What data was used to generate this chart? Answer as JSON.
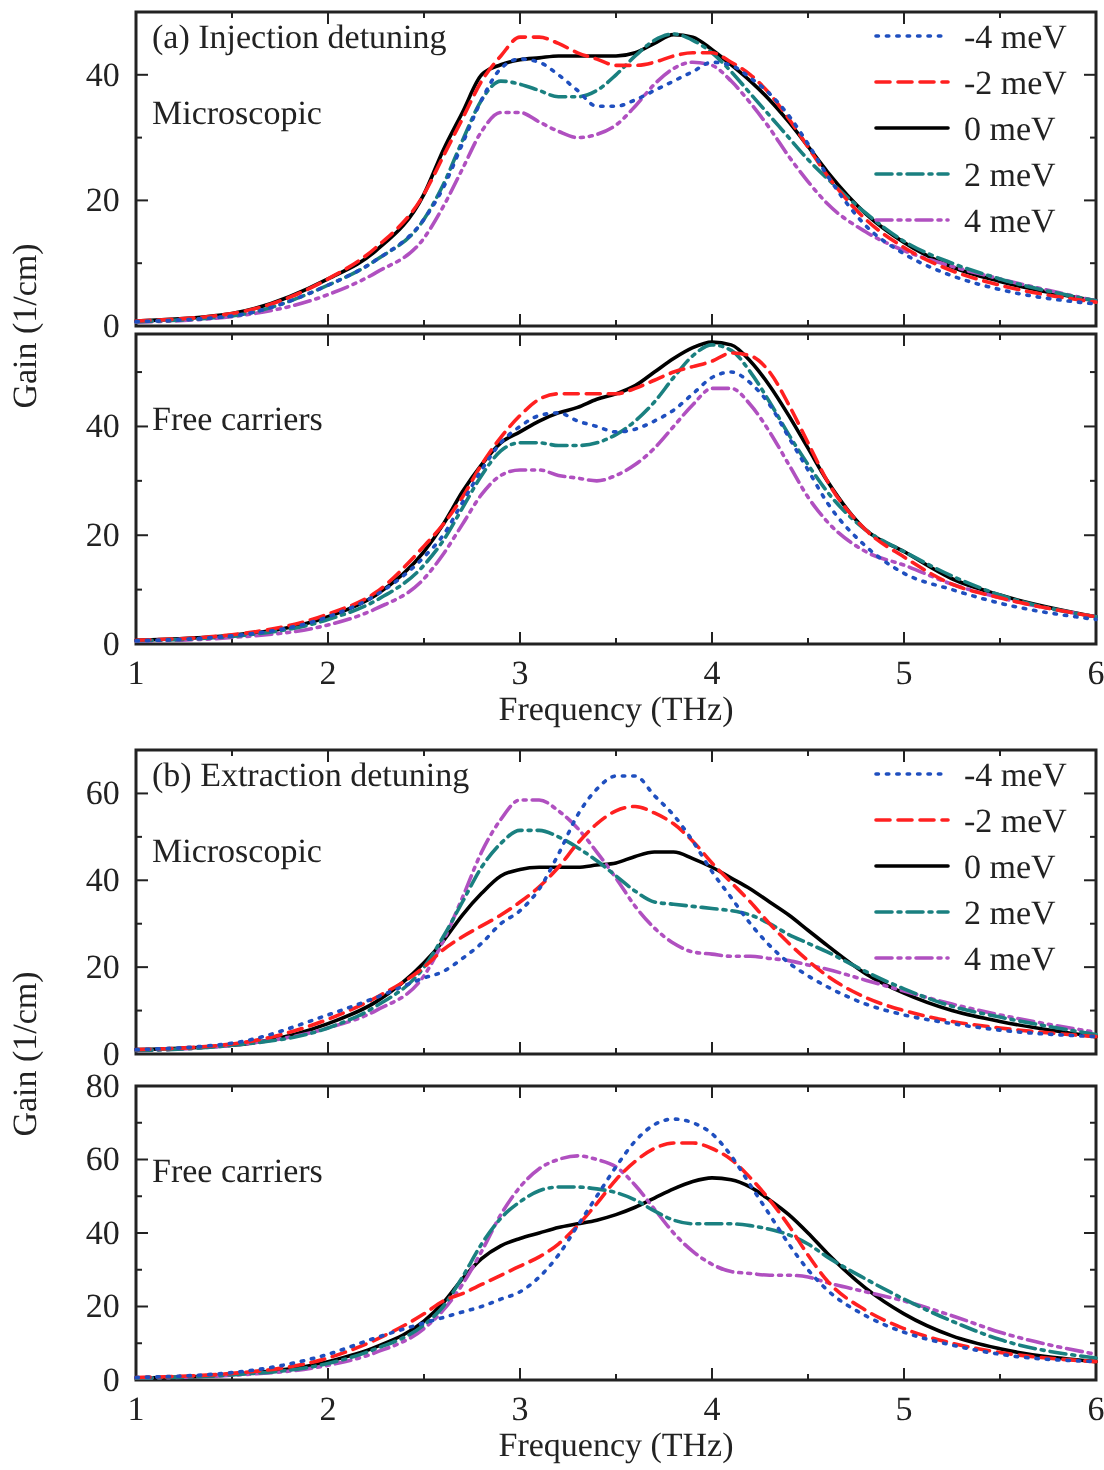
{
  "chart_data": [
    {
      "type": "line",
      "annotations": [
        "(a)  Injection detuning",
        "Microscopic"
      ],
      "ylabel": "Gain (1/cm)",
      "xlim": [
        1,
        6
      ],
      "ylim": [
        0,
        50
      ],
      "tick_labels": "y",
      "legend": "top right",
      "xticks": [
        1,
        {
          "value": 1.5,
          "label": null
        },
        2,
        {
          "value": 2.5,
          "label": null
        },
        3,
        {
          "value": 3.5,
          "label": null
        },
        4,
        {
          "value": 4.5,
          "label": null
        },
        5,
        {
          "value": 5.5,
          "label": null
        },
        6
      ],
      "yticks": [
        0,
        {
          "value": 10,
          "label": null
        },
        20,
        {
          "value": 30,
          "label": null
        },
        40,
        {
          "value": 50,
          "label": null
        }
      ],
      "x": [
        1,
        1.5,
        2,
        2.25,
        2.5,
        2.6,
        2.7,
        2.8,
        2.9,
        3,
        3.1,
        3.2,
        3.3,
        3.4,
        3.5,
        3.6,
        3.7,
        3.8,
        3.9,
        4,
        4.1,
        4.2,
        4.3,
        4.4,
        4.5,
        4.6,
        4.8,
        5,
        5.25,
        5.5,
        6
      ],
      "series": [
        {
          "name": "-4 meV",
          "color": "#1f4fbf",
          "line_style": "dotted",
          "values": [
            0.7,
            1.6,
            6.5,
            10.5,
            17,
            22,
            29,
            36,
            41,
            42.5,
            42,
            40,
            37.5,
            35,
            35,
            36,
            37.5,
            39,
            40.5,
            42,
            41.5,
            39.5,
            37,
            33.5,
            29,
            24,
            16,
            11.5,
            8,
            5.8,
            3.5
          ]
        },
        {
          "name": "-2 meV",
          "color": "#ff2020",
          "line_style": "dashed",
          "values": [
            0.8,
            2,
            7.5,
            12.5,
            21,
            27,
            33,
            39,
            43,
            46,
            46,
            45,
            43.5,
            42.5,
            41.5,
            41.5,
            42,
            43,
            43.5,
            43.5,
            42,
            40,
            37,
            33,
            28.5,
            24,
            17,
            12.5,
            8.8,
            6.5,
            3.8
          ]
        },
        {
          "name": "0 meV",
          "color": "#000000",
          "line_style": "solid",
          "values": [
            0.8,
            2,
            7.5,
            12,
            21,
            28,
            34,
            40,
            41.6,
            42.4,
            42.7,
            43,
            43,
            43,
            43,
            43.5,
            45,
            46.4,
            46,
            44,
            41.6,
            39,
            36,
            32.5,
            28.6,
            24.6,
            17.9,
            13.3,
            9.4,
            7.1,
            4
          ]
        },
        {
          "name": "2 meV",
          "color": "#1a8080",
          "line_style": "dashdot",
          "values": [
            0.7,
            1.6,
            6.5,
            10.5,
            17,
            22.5,
            29.5,
            36,
            39,
            38.5,
            37.5,
            36.5,
            36.5,
            37.5,
            40,
            43,
            45.5,
            46.5,
            45.5,
            43.5,
            40.5,
            37,
            33.5,
            30,
            26.5,
            23.5,
            18,
            13.5,
            10,
            7.5,
            4
          ]
        },
        {
          "name": "4 meV",
          "color": "#b050c0",
          "line_style": "dashdotdot",
          "values": [
            0.6,
            1.5,
            5,
            8.5,
            14,
            19,
            25,
            31,
            34,
            34,
            32.5,
            31,
            30,
            30.5,
            32,
            35,
            38.5,
            41,
            42,
            41.5,
            39,
            35.5,
            31.5,
            27,
            23,
            19.5,
            15,
            12,
            9.5,
            7.5,
            4
          ]
        }
      ]
    },
    {
      "type": "line",
      "annotations": [
        "Free carriers"
      ],
      "xlabel": "Frequency (THz)",
      "xlim": [
        1,
        6
      ],
      "ylim": [
        0,
        57
      ],
      "xticks": [
        1,
        {
          "value": 1.5,
          "label": null
        },
        2,
        {
          "value": 2.5,
          "label": null
        },
        3,
        {
          "value": 3.5,
          "label": null
        },
        4,
        {
          "value": 4.5,
          "label": null
        },
        5,
        {
          "value": 5.5,
          "label": null
        },
        6
      ],
      "yticks": [
        0,
        {
          "value": 10,
          "label": null
        },
        20,
        {
          "value": 30,
          "label": null
        },
        40,
        {
          "value": 50,
          "label": null
        }
      ],
      "x": [
        1,
        1.5,
        2,
        2.25,
        2.5,
        2.6,
        2.7,
        2.8,
        2.9,
        3,
        3.1,
        3.2,
        3.3,
        3.4,
        3.5,
        3.6,
        3.7,
        3.8,
        3.9,
        4,
        4.1,
        4.2,
        4.3,
        4.4,
        4.5,
        4.6,
        4.8,
        5,
        5.25,
        5.5,
        6
      ],
      "series": [
        {
          "color": "#1f4fbf",
          "line_style": "dotted",
          "values": [
            0.6,
            1.5,
            5,
            9,
            16,
            20,
            26,
            32,
            37,
            40,
            42,
            42.5,
            41,
            40,
            39,
            39.5,
            41,
            43,
            46,
            49,
            50,
            48,
            44,
            38,
            32,
            26,
            18,
            13,
            10,
            7.5,
            4.5
          ]
        },
        {
          "color": "#ff2020",
          "line_style": "dashed",
          "values": [
            0.7,
            1.7,
            5.5,
            9.5,
            18,
            22,
            27,
            33,
            38,
            42,
            45,
            46,
            46,
            46,
            46,
            47,
            48.5,
            50,
            51,
            52,
            53.5,
            53,
            50,
            44,
            37,
            30,
            21,
            16,
            11,
            8.5,
            5
          ]
        },
        {
          "color": "#000000",
          "line_style": "solid",
          "values": [
            0.7,
            1.6,
            5,
            9,
            17,
            22,
            28,
            33,
            37,
            39,
            41,
            42.5,
            43.5,
            45,
            46,
            47.5,
            50,
            52.5,
            54.5,
            55.5,
            55,
            52,
            47.5,
            42,
            36,
            30,
            21,
            17,
            12,
            9,
            5
          ]
        },
        {
          "color": "#1a8080",
          "line_style": "dashdot",
          "values": [
            0.6,
            1.4,
            4.5,
            8,
            14.5,
            19,
            25,
            31,
            35.5,
            37,
            37,
            36.5,
            36.5,
            37,
            38.5,
            41,
            44.5,
            49,
            53,
            55,
            54,
            50,
            44.5,
            38.5,
            33,
            28,
            21,
            17,
            12.5,
            9,
            5
          ]
        },
        {
          "color": "#b050c0",
          "line_style": "dashdotdot",
          "values": [
            0.5,
            1.2,
            3.5,
            6.5,
            12,
            16.5,
            22,
            27.5,
            31,
            32,
            32,
            31,
            30.5,
            30,
            31,
            33,
            36,
            40,
            44,
            47,
            47,
            44,
            39,
            33,
            27,
            22.5,
            17,
            14.5,
            11,
            8.5,
            5
          ]
        }
      ]
    },
    {
      "type": "line",
      "annotations": [
        "(b)  Extraction detuning",
        "Microscopic"
      ],
      "ylabel": "Gain (1/cm)",
      "xlim": [
        1,
        6
      ],
      "ylim": [
        0,
        70
      ],
      "tick_labels": "y",
      "legend": "top right",
      "xticks": [
        1,
        {
          "value": 1.5,
          "label": null
        },
        2,
        {
          "value": 2.5,
          "label": null
        },
        3,
        {
          "value": 3.5,
          "label": null
        },
        4,
        {
          "value": 4.5,
          "label": null
        },
        5,
        {
          "value": 5.5,
          "label": null
        },
        6
      ],
      "yticks": [
        0,
        {
          "value": 10,
          "label": null
        },
        20,
        {
          "value": 30,
          "label": null
        },
        40,
        {
          "value": 50,
          "label": null
        },
        60,
        {
          "value": 70,
          "label": null
        }
      ],
      "x": [
        1,
        1.5,
        2,
        2.25,
        2.5,
        2.6,
        2.7,
        2.8,
        2.9,
        3,
        3.1,
        3.2,
        3.3,
        3.4,
        3.5,
        3.6,
        3.7,
        3.8,
        3.9,
        4,
        4.1,
        4.2,
        4.3,
        4.4,
        4.5,
        4.6,
        4.8,
        5,
        5.25,
        5.5,
        6
      ],
      "series": [
        {
          "name": "-4 meV",
          "color": "#1f4fbf",
          "line_style": "dotted",
          "values": [
            1,
            2.5,
            9,
            13,
            17.5,
            19,
            22,
            25.5,
            30,
            33,
            38,
            46,
            55,
            61,
            64,
            64,
            59.5,
            55,
            49,
            42,
            36,
            30,
            25,
            21,
            18,
            15.5,
            11.5,
            9,
            7,
            5.5,
            4
          ]
        },
        {
          "name": "-2 meV",
          "color": "#ff2020",
          "line_style": "dashed",
          "values": [
            1,
            2.3,
            8,
            13,
            20,
            24,
            27,
            29.5,
            32,
            35,
            38.5,
            43,
            48.5,
            53,
            56,
            57,
            55.5,
            53,
            49,
            44,
            39.5,
            35,
            30,
            25.5,
            21.5,
            18,
            13,
            10,
            7.5,
            6,
            4
          ]
        },
        {
          "name": "0 meV",
          "color": "#000000",
          "line_style": "solid",
          "values": [
            1,
            2,
            7,
            12,
            21,
            26,
            32,
            37,
            41,
            42.5,
            43,
            43,
            43,
            43.5,
            44,
            45.5,
            46.5,
            46.5,
            45,
            43,
            40.5,
            38,
            35,
            32,
            28.5,
            25,
            18.5,
            14,
            10,
            7.5,
            4
          ]
        },
        {
          "name": "2 meV",
          "color": "#1a8080",
          "line_style": "dashdot",
          "values": [
            0.8,
            2,
            6,
            11,
            20,
            27,
            35,
            43,
            48.5,
            51.5,
            51.5,
            50,
            47.5,
            44.5,
            41,
            37.5,
            35,
            34.5,
            34,
            33.5,
            33,
            32,
            30,
            27.5,
            25.5,
            23.5,
            19,
            15,
            11,
            8.5,
            4.5
          ]
        },
        {
          "name": "4 meV",
          "color": "#b050c0",
          "line_style": "dashdotdot",
          "values": [
            0.8,
            2,
            6,
            10,
            18,
            26,
            36,
            46.5,
            54,
            58.5,
            58.5,
            56,
            52,
            46.5,
            40.5,
            34,
            29,
            25.5,
            23.5,
            23,
            22.5,
            22.5,
            22,
            21.5,
            20.5,
            19.5,
            17,
            14.5,
            11.5,
            9,
            5
          ]
        }
      ]
    },
    {
      "type": "line",
      "annotations": [
        "Free carriers"
      ],
      "xlabel": "Frequency (THz)",
      "xlim": [
        1,
        6
      ],
      "ylim": [
        0,
        80
      ],
      "xticks": [
        1,
        {
          "value": 1.5,
          "label": null
        },
        2,
        {
          "value": 2.5,
          "label": null
        },
        3,
        {
          "value": 3.5,
          "label": null
        },
        4,
        {
          "value": 4.5,
          "label": null
        },
        5,
        {
          "value": 5.5,
          "label": null
        },
        6
      ],
      "yticks": [
        0,
        {
          "value": 10,
          "label": null
        },
        20,
        {
          "value": 30,
          "label": null
        },
        40,
        {
          "value": 50,
          "label": null
        },
        60,
        {
          "value": 70,
          "label": null
        },
        80
      ],
      "x": [
        1,
        1.5,
        2,
        2.25,
        2.5,
        2.6,
        2.7,
        2.8,
        2.9,
        3,
        3.1,
        3.2,
        3.3,
        3.4,
        3.5,
        3.6,
        3.7,
        3.8,
        3.9,
        4,
        4.1,
        4.2,
        4.3,
        4.4,
        4.5,
        4.6,
        4.8,
        5,
        5.25,
        5.5,
        6
      ],
      "series": [
        {
          "color": "#1f4fbf",
          "line_style": "dotted",
          "values": [
            0.7,
            2,
            7,
            11.5,
            15.5,
            17,
            18.5,
            20,
            22,
            24,
            28,
            34,
            42,
            50,
            58,
            65,
            69.5,
            71,
            70,
            67,
            61,
            53,
            45,
            37,
            30,
            24.5,
            17.5,
            13,
            9.5,
            7,
            5
          ]
        },
        {
          "color": "#ff2020",
          "line_style": "dashed",
          "values": [
            0.7,
            1.8,
            6,
            11,
            18,
            21.5,
            23.5,
            26,
            28.5,
            31,
            33.5,
            37,
            42,
            48,
            54.5,
            59.5,
            63,
            64.5,
            64.5,
            63,
            60,
            55,
            49,
            42,
            34,
            27,
            19,
            14,
            10,
            7.5,
            5
          ]
        },
        {
          "color": "#000000",
          "line_style": "solid",
          "values": [
            0.5,
            1.5,
            5,
            9,
            16,
            21,
            27.5,
            33,
            36.5,
            38.5,
            40,
            41.5,
            42.5,
            43.5,
            45,
            47,
            49.5,
            52,
            54,
            55,
            54.5,
            52.5,
            49,
            45,
            40,
            34.5,
            25,
            18,
            12,
            8.5,
            5
          ]
        },
        {
          "color": "#1a8080",
          "line_style": "dashdot",
          "values": [
            0.5,
            1.4,
            4.5,
            8.5,
            15,
            20,
            28,
            37,
            44,
            48.5,
            51.5,
            52.5,
            52.5,
            52,
            51,
            49,
            46,
            43.5,
            42.5,
            42.5,
            42.5,
            42,
            41,
            39.5,
            37,
            33.5,
            27.5,
            22,
            16,
            11,
            6
          ]
        },
        {
          "color": "#b050c0",
          "line_style": "dashdotdot",
          "values": [
            0.5,
            1.3,
            4,
            7.5,
            14,
            19,
            26,
            35,
            45,
            52.5,
            57.5,
            60,
            61,
            60,
            58,
            53,
            46.5,
            40,
            35,
            31.5,
            29.5,
            29,
            28.5,
            28.5,
            28,
            26.5,
            24,
            21.5,
            17.5,
            13,
            7
          ]
        }
      ]
    }
  ]
}
